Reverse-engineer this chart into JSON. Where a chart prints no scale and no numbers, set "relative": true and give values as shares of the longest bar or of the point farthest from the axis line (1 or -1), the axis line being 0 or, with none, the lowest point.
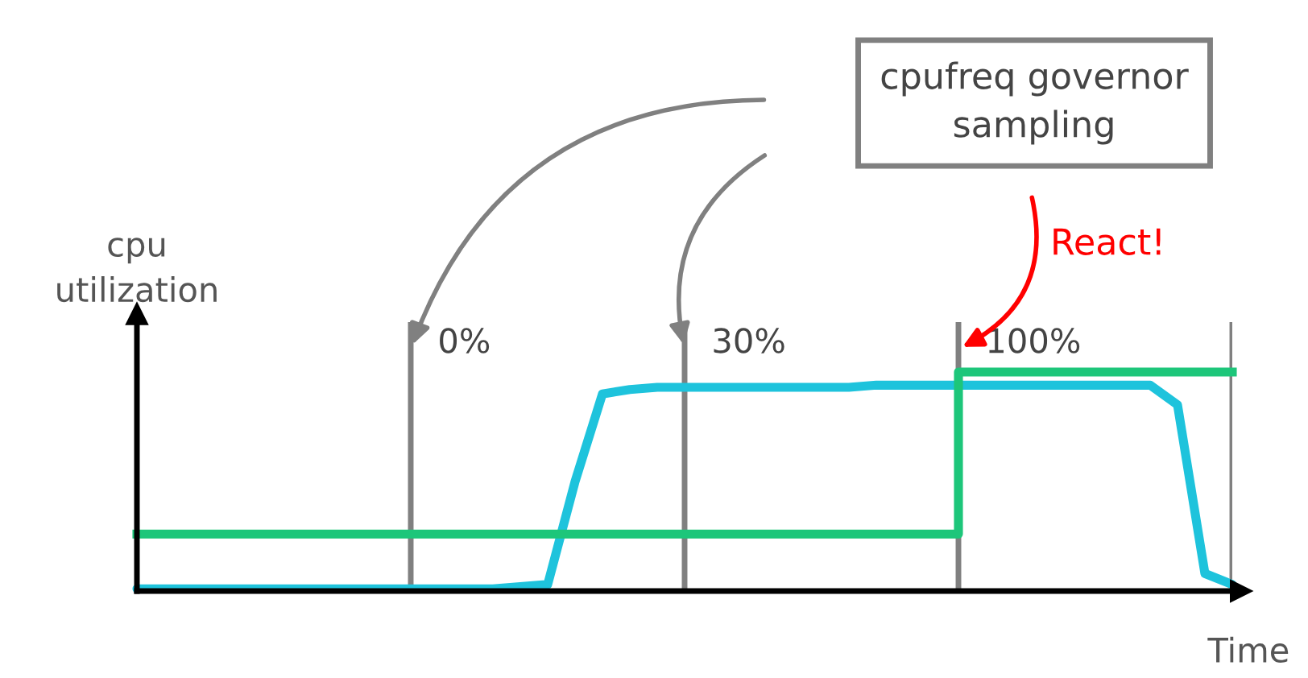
{
  "chart_data": {
    "type": "line",
    "relative": true,
    "xlabel": "Time",
    "ylabel": "cpu\nutilization",
    "categories": [
      null,
      null,
      null,
      null,
      null,
      null,
      null,
      null,
      null,
      null,
      null,
      null,
      null,
      null,
      null,
      null,
      null,
      null,
      null,
      null,
      null,
      null,
      null,
      null,
      null,
      null,
      null,
      null,
      null,
      null,
      null,
      null,
      null,
      null,
      null,
      null,
      null,
      null,
      null,
      null,
      null
    ],
    "series": [
      {
        "color": "#1ec3dc",
        "values": [
          0.01,
          0.01,
          0.01,
          0.01,
          0.01,
          0.01,
          0.01,
          0.01,
          0.01,
          0.01,
          0.01,
          0.01,
          0.01,
          0.01,
          0.02,
          0.03,
          0.5,
          0.9,
          0.92,
          0.93,
          0.93,
          0.93,
          0.93,
          0.93,
          0.93,
          0.93,
          0.93,
          0.94,
          0.94,
          0.94,
          0.94,
          0.94,
          0.94,
          0.94,
          0.94,
          0.94,
          0.94,
          0.94,
          0.85,
          0.08,
          0.03
        ]
      },
      {
        "type": "step",
        "color": "#1dc67a",
        "values": [
          0.26,
          0.26,
          0.26,
          0.26,
          0.26,
          0.26,
          0.26,
          0.26,
          0.26,
          0.26,
          0.26,
          0.26,
          0.26,
          0.26,
          0.26,
          0.26,
          0.26,
          0.26,
          0.26,
          0.26,
          0.26,
          0.26,
          0.26,
          0.26,
          0.26,
          0.26,
          0.26,
          0.26,
          0.26,
          0.26,
          1,
          1,
          1,
          1,
          1,
          1,
          1,
          1,
          1,
          1,
          1
        ]
      }
    ],
    "grid": "x",
    "annotations": [
      "cpufreq governor\nsampling",
      "React!",
      "0%",
      "30%",
      "100%"
    ]
  }
}
